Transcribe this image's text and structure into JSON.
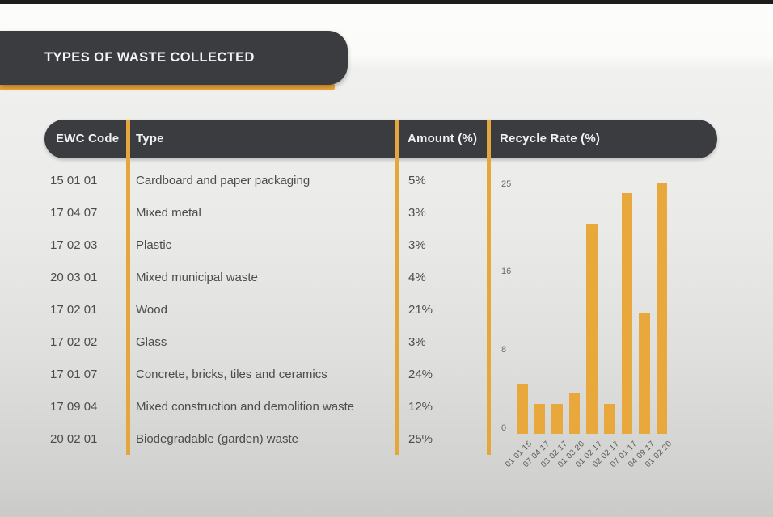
{
  "window": {
    "top_strip_color": "#1C1C1C"
  },
  "title_banner": {
    "label": "TYPES OF WASTE COLLECTED",
    "bg_color": "#3B3C40",
    "underline_color": "#F0A73A"
  },
  "table": {
    "headers": {
      "code": "EWC Code",
      "type": "Type",
      "amount": "Amount (%)",
      "recycle": "Recycle Rate (%)"
    },
    "divider_color": "#E5A63E",
    "rows": [
      {
        "code": "15 01 01",
        "type": "Cardboard and paper packaging",
        "amount": "5%"
      },
      {
        "code": "17 04 07",
        "type": "Mixed metal",
        "amount": "3%"
      },
      {
        "code": "17 02 03",
        "type": "Plastic",
        "amount": "3%"
      },
      {
        "code": "20 03 01",
        "type": "Mixed municipal waste",
        "amount": "4%"
      },
      {
        "code": "17 02 01",
        "type": "Wood",
        "amount": "21%"
      },
      {
        "code": "17 02 02",
        "type": "Glass",
        "amount": "3%"
      },
      {
        "code": "17 01 07",
        "type": "Concrete, bricks, tiles and ceramics",
        "amount": "24%"
      },
      {
        "code": "17 09 04",
        "type": "Mixed construction and demolition waste",
        "amount": "12%"
      },
      {
        "code": "20 02 01",
        "type": "Biodegradable (garden) waste",
        "amount": "25%"
      }
    ]
  },
  "chart_data": {
    "type": "bar",
    "title": "Recycle Rate (%)",
    "categories": [
      "15 01 01",
      "17 04 07",
      "17 02 03",
      "20 03 01",
      "17 02 01",
      "17 02 02",
      "17 01 07",
      "17 09 04",
      "20 02 01"
    ],
    "values": [
      5,
      3,
      3,
      4,
      21,
      3,
      24,
      12,
      25
    ],
    "xlabel": "",
    "ylabel": "",
    "yticks": [
      0,
      8,
      16,
      25
    ],
    "ylim": [
      0,
      26
    ],
    "grid": false,
    "legend_position": "none",
    "xlabel_rotation": -45,
    "bar_color": "#E9A83C"
  }
}
